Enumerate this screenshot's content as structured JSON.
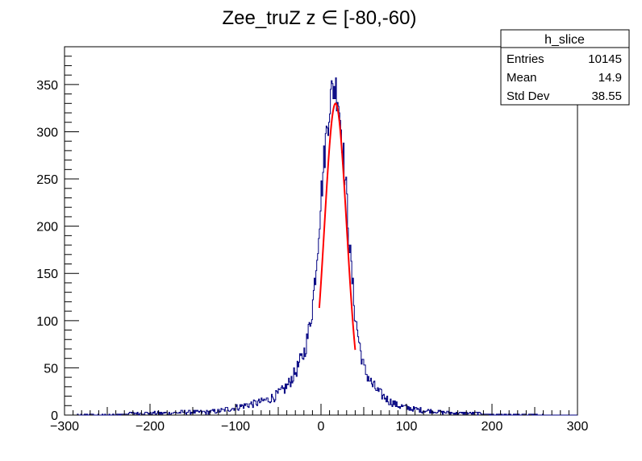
{
  "chart_data": {
    "type": "histogram",
    "title": "Zee_truZ z  ∈ [-80,-60)",
    "xlim": [
      -300,
      300
    ],
    "ylim": [
      0,
      390
    ],
    "x_ticks": [
      "−300",
      "−200",
      "−100",
      "0",
      "100",
      "200",
      "300"
    ],
    "y_ticks": [
      "0",
      "50",
      "100",
      "150",
      "200",
      "250",
      "300",
      "350"
    ],
    "grid": false,
    "series": [
      {
        "kind": "histogram",
        "color": "#000080",
        "bin_width": 1,
        "centers": [
          -300,
          -260,
          -240,
          -220,
          -200,
          -180,
          -160,
          -140,
          -120,
          -110,
          -100,
          -90,
          -80,
          -70,
          -60,
          -50,
          -40,
          -30,
          -20,
          -15,
          -10,
          -5,
          0,
          5,
          10,
          15,
          20,
          25,
          30,
          35,
          40,
          45,
          50,
          60,
          70,
          80,
          90,
          100,
          110,
          120,
          140,
          160,
          180,
          200,
          220,
          240,
          260,
          280,
          300
        ],
        "values": [
          0,
          1,
          1,
          2,
          2,
          2,
          3,
          3,
          4,
          6,
          8,
          10,
          12,
          14,
          17,
          22,
          30,
          45,
          65,
          85,
          115,
          165,
          230,
          285,
          330,
          350,
          340,
          290,
          230,
          160,
          105,
          75,
          50,
          32,
          22,
          15,
          10,
          8,
          6,
          5,
          3,
          2,
          2,
          1,
          1,
          1,
          0,
          0,
          0
        ]
      },
      {
        "kind": "fit",
        "color": "#ff0000",
        "function": "gaussian",
        "mean": 17,
        "sigma": 13,
        "amplitude": 330,
        "range": [
          -2,
          40
        ]
      }
    ]
  },
  "stats_box": {
    "name": "h_slice",
    "rows": [
      {
        "label": "Entries",
        "value": "10145"
      },
      {
        "label": "Mean",
        "value": "14.9"
      },
      {
        "label": "Std Dev",
        "value": "38.55"
      }
    ]
  }
}
